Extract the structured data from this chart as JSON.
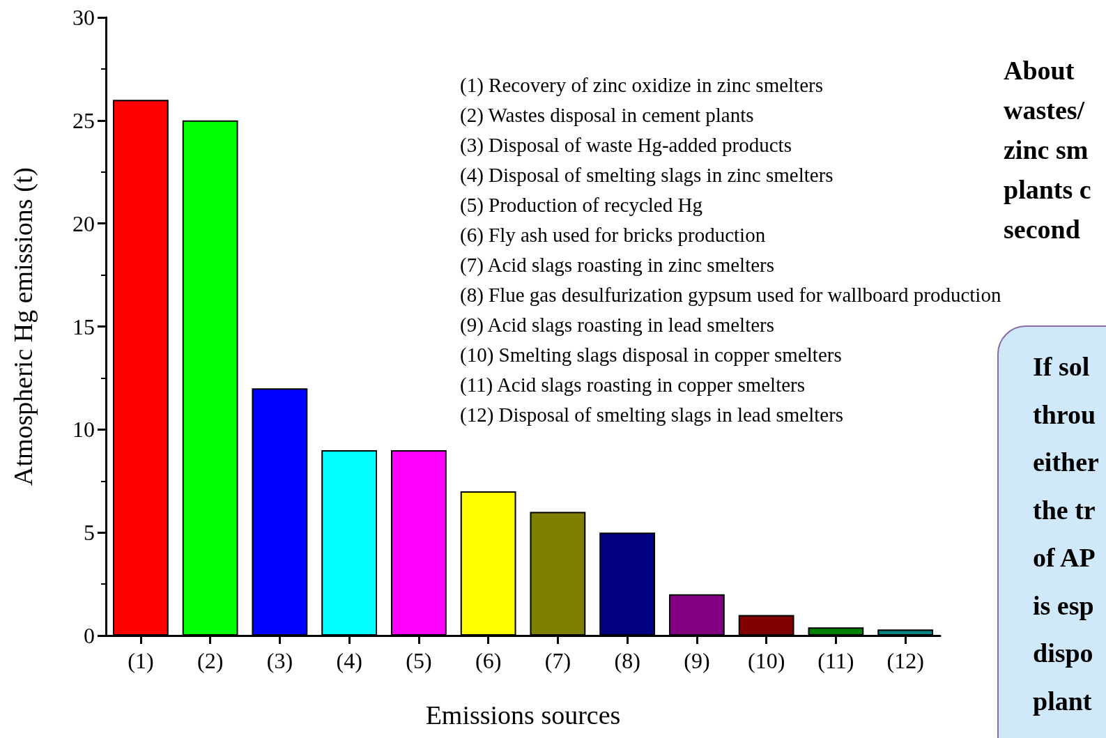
{
  "chart_data": {
    "type": "bar",
    "xlabel": "Emissions sources",
    "ylabel": "Atmospheric Hg emissions (t)",
    "categories": [
      "(1)",
      "(2)",
      "(3)",
      "(4)",
      "(5)",
      "(6)",
      "(7)",
      "(8)",
      "(9)",
      "(10)",
      "(11)",
      "(12)"
    ],
    "values": [
      26,
      25,
      12,
      9,
      9,
      7,
      6,
      5,
      2,
      1,
      0.4,
      0.3
    ],
    "colors": [
      "#ff0000",
      "#00ff00",
      "#0000ff",
      "#00ffff",
      "#ff00ff",
      "#ffff00",
      "#808000",
      "#000080",
      "#800080",
      "#800000",
      "#008000",
      "#008080"
    ],
    "ylim": [
      0,
      30
    ],
    "yticks": [
      0,
      5,
      10,
      15,
      20,
      25,
      30
    ],
    "grid": false,
    "annotations": [
      "(1) Recovery of zinc oxidize in zinc smelters\n(2) Wastes disposal in cement plants\n(3) Disposal of waste Hg-added products\n(4) Disposal of smelting slags in zinc smelters\n(5) Production of recycled Hg\n(6) Fly ash used for bricks production\n(7) Acid slags roasting in zinc smelters\n(8) Flue gas desulfurization gypsum used for wallboard production\n(9) Acid slags roasting in lead smelters\n(10) Smelting slags disposal in copper smelters\n(11) Acid slags roasting in copper smelters\n(12) Disposal of smelting slags in lead smelters",
      "About\nwastes/\nzinc sm\nplants c\nsecond",
      "If sol\nthrou\neither\nthe tr\nof AP\nis esp\ndispo\nplant"
    ]
  }
}
